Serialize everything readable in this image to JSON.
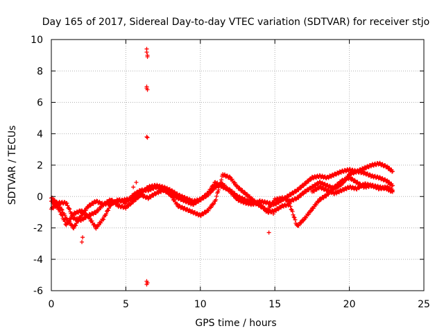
{
  "chart_data": {
    "type": "scatter",
    "title": "Day 165 of 2017, Sidereal Day-to-day VTEC variation (SDTVAR) for receiver stjo",
    "xlabel": "GPS time / hours",
    "ylabel": "SDTVAR / TECUs",
    "xlim": [
      0,
      25
    ],
    "ylim": [
      -6,
      10
    ],
    "xticks": [
      0,
      5,
      10,
      15,
      20,
      25
    ],
    "yticks": [
      -6,
      -4,
      -2,
      0,
      2,
      4,
      6,
      8,
      10
    ],
    "grid": true,
    "marker": "+",
    "series": [
      {
        "name": "SDTVAR",
        "color": "#ff0000",
        "tracks": [
          {
            "x": [
              0.0,
              0.5,
              1.0,
              1.5,
              2.0,
              2.5,
              3.0,
              3.5,
              4.0,
              4.5,
              5.0,
              5.5,
              6.0,
              6.5,
              7.0,
              7.5,
              8.0,
              8.5,
              9.0,
              9.5,
              10.0,
              10.5,
              11.0,
              11.5,
              12.0,
              12.5,
              13.0,
              13.5,
              14.0,
              14.5,
              15.0,
              15.5,
              16.0,
              16.5,
              17.0,
              17.5,
              18.0,
              18.5,
              19.0,
              19.5,
              20.0,
              20.5,
              21.0,
              21.5,
              22.0,
              22.5,
              22.9
            ],
            "y": [
              -0.8,
              -0.4,
              -0.4,
              -1.4,
              -1.5,
              -1.2,
              -1.0,
              -0.5,
              -0.4,
              -0.3,
              -0.2,
              -0.1,
              0.2,
              0.6,
              0.7,
              0.6,
              0.4,
              0.1,
              -0.1,
              -0.3,
              -0.2,
              0.1,
              0.6,
              0.8,
              0.3,
              -0.2,
              -0.4,
              -0.5,
              -0.3,
              -0.4,
              -0.5,
              -0.2,
              0.1,
              0.4,
              0.8,
              1.2,
              1.3,
              1.2,
              1.4,
              1.6,
              1.7,
              1.6,
              1.8,
              2.0,
              2.1,
              1.9,
              1.6
            ]
          },
          {
            "x": [
              0.0,
              0.5,
              1.0,
              1.5,
              2.0,
              2.5,
              3.0,
              3.5,
              4.0,
              4.5,
              5.0,
              5.5,
              6.0,
              6.5,
              7.0,
              7.5,
              8.0,
              8.5,
              9.0,
              9.5,
              10.0,
              10.5,
              11.0,
              11.5,
              12.0,
              12.5,
              13.0,
              13.5,
              14.0,
              14.5,
              15.0,
              15.5,
              16.0,
              16.5,
              17.0,
              17.5,
              18.0,
              18.5,
              19.0,
              19.5,
              20.0,
              20.5,
              21.0,
              21.5,
              22.0,
              22.5,
              22.9
            ],
            "y": [
              -0.3,
              -0.8,
              -1.8,
              -1.1,
              -0.9,
              -1.3,
              -2.0,
              -1.4,
              -0.5,
              -0.2,
              -0.4,
              0.1,
              0.4,
              0.4,
              0.6,
              0.5,
              0.1,
              -0.6,
              -0.8,
              -1.0,
              -1.2,
              -0.9,
              -0.3,
              1.4,
              1.2,
              0.6,
              0.2,
              -0.2,
              -0.6,
              -0.9,
              -0.2,
              -0.1,
              -0.3,
              -0.1,
              0.3,
              0.6,
              0.9,
              0.7,
              0.5,
              0.8,
              1.4,
              1.6,
              1.5,
              1.3,
              1.2,
              1.0,
              0.7
            ]
          },
          {
            "x": [
              0.0,
              0.5,
              1.0,
              1.5,
              2.0,
              2.5,
              3.0,
              3.5,
              4.0,
              4.5,
              5.0,
              5.5,
              6.0,
              6.5,
              7.0,
              7.5,
              8.0,
              8.5,
              9.0,
              9.5,
              10.0,
              10.5,
              11.0,
              11.5,
              12.0,
              12.5,
              13.0,
              13.5,
              14.0,
              14.5,
              15.0,
              15.5,
              16.0,
              16.5,
              17.0,
              17.5,
              18.0,
              18.5,
              19.0,
              19.5,
              20.0,
              20.5,
              21.0,
              21.5,
              22.0,
              22.5,
              22.9
            ],
            "y": [
              -0.1,
              -0.5,
              -1.4,
              -2.0,
              -1.2,
              -0.6,
              -0.3,
              -0.5,
              -0.2,
              -0.6,
              -0.7,
              -0.3,
              0.1,
              -0.1,
              0.2,
              0.4,
              0.2,
              -0.1,
              -0.3,
              -0.5,
              -0.2,
              0.2,
              0.9,
              0.6,
              0.4,
              0.0,
              -0.2,
              -0.4,
              -0.5,
              -1.0,
              -0.9,
              -0.6,
              -0.5,
              -1.9,
              -1.4,
              -0.8,
              -0.2,
              0.1,
              0.6,
              1.0,
              1.2,
              0.9,
              0.6,
              0.7,
              0.5,
              0.6,
              0.4
            ]
          },
          {
            "x": [
              17.5,
              18.0,
              18.5,
              19.0,
              19.5,
              20.0,
              20.5,
              21.0,
              21.5,
              22.0,
              22.5,
              22.9
            ],
            "y": [
              0.3,
              0.6,
              0.4,
              0.2,
              0.4,
              0.6,
              0.5,
              0.8,
              0.7,
              0.6,
              0.5,
              0.3
            ]
          }
        ],
        "points": [
          {
            "x": 6.4,
            "y": 9.4
          },
          {
            "x": 6.4,
            "y": 9.2
          },
          {
            "x": 6.45,
            "y": 9.0
          },
          {
            "x": 6.45,
            "y": 8.9
          },
          {
            "x": 6.4,
            "y": 7.0
          },
          {
            "x": 6.4,
            "y": 6.9
          },
          {
            "x": 6.45,
            "y": 6.8
          },
          {
            "x": 6.4,
            "y": 3.8
          },
          {
            "x": 6.45,
            "y": 3.75
          },
          {
            "x": 6.4,
            "y": -5.4
          },
          {
            "x": 6.45,
            "y": -5.5
          },
          {
            "x": 6.4,
            "y": -5.6
          },
          {
            "x": 2.1,
            "y": -2.6
          },
          {
            "x": 2.05,
            "y": -2.9
          },
          {
            "x": 14.6,
            "y": -2.3
          },
          {
            "x": 14.9,
            "y": -1.1
          },
          {
            "x": 5.7,
            "y": 0.9
          },
          {
            "x": 5.5,
            "y": 0.6
          }
        ]
      }
    ]
  }
}
